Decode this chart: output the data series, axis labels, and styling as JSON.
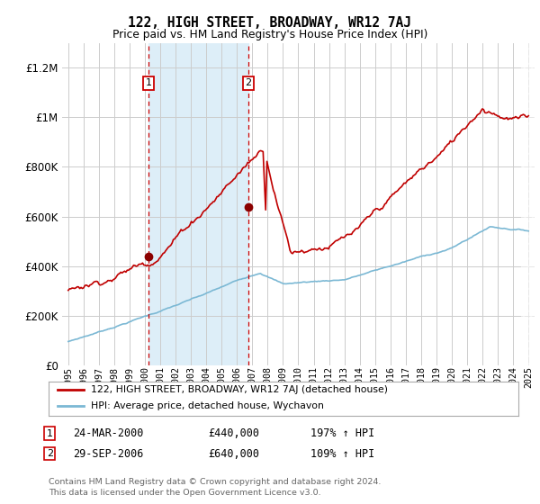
{
  "title": "122, HIGH STREET, BROADWAY, WR12 7AJ",
  "subtitle": "Price paid vs. HM Land Registry's House Price Index (HPI)",
  "footnote": "Contains HM Land Registry data © Crown copyright and database right 2024.\nThis data is licensed under the Open Government Licence v3.0.",
  "legend_line1": "122, HIGH STREET, BROADWAY, WR12 7AJ (detached house)",
  "legend_line2": "HPI: Average price, detached house, Wychavon",
  "transaction1_date": "24-MAR-2000",
  "transaction1_price": 440000,
  "transaction1_hpi": "197% ↑ HPI",
  "transaction1_x": 2000.23,
  "transaction2_date": "29-SEP-2006",
  "transaction2_price": 640000,
  "transaction2_hpi": "109% ↑ HPI",
  "transaction2_x": 2006.75,
  "hpi_color": "#7bb8d4",
  "price_color": "#c00000",
  "marker_color": "#8b0000",
  "highlight_color": "#ddeef8",
  "box_color": "#cc0000",
  "ylim": [
    0,
    1300000
  ],
  "yticks": [
    0,
    200000,
    400000,
    600000,
    800000,
    1000000,
    1200000
  ],
  "xlim_start": 1994.6,
  "xlim_end": 2025.4,
  "background_color": "#ffffff",
  "grid_color": "#cccccc",
  "hatch_start": 2024.5
}
